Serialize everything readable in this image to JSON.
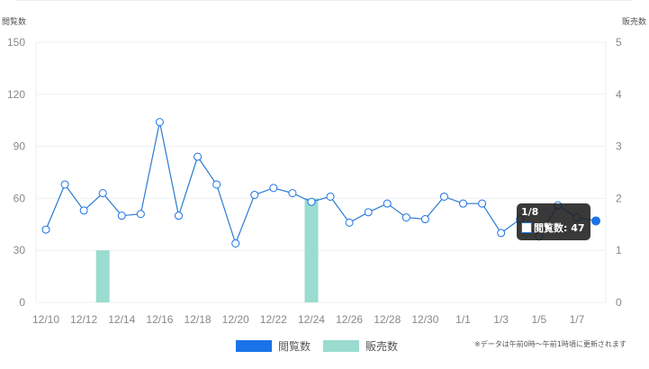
{
  "chart_data": {
    "type": "bar+line",
    "categories": [
      "12/10",
      "12/11",
      "12/12",
      "12/13",
      "12/14",
      "12/15",
      "12/16",
      "12/17",
      "12/18",
      "12/19",
      "12/20",
      "12/21",
      "12/22",
      "12/23",
      "12/24",
      "12/25",
      "12/26",
      "12/27",
      "12/28",
      "12/29",
      "12/30",
      "12/31",
      "1/1",
      "1/2",
      "1/3",
      "1/4",
      "1/5",
      "1/6",
      "1/7",
      "1/8"
    ],
    "x_tick_labels": [
      "12/10",
      "12/12",
      "12/14",
      "12/16",
      "12/18",
      "12/20",
      "12/22",
      "12/24",
      "12/26",
      "12/28",
      "12/30",
      "1/1",
      "1/3",
      "1/5",
      "1/7"
    ],
    "series": [
      {
        "name": "閲覧数",
        "type": "line",
        "axis": "left",
        "color": "#1a73e8",
        "values": [
          42,
          68,
          53,
          63,
          50,
          51,
          104,
          50,
          84,
          68,
          34,
          62,
          66,
          63,
          58,
          61,
          46,
          52,
          57,
          49,
          48,
          61,
          57,
          57,
          40,
          48,
          38,
          56,
          49,
          47
        ]
      },
      {
        "name": "販売数",
        "type": "bar",
        "axis": "right",
        "color": "#9adccf",
        "values": [
          0,
          0,
          0,
          1,
          0,
          0,
          0,
          0,
          0,
          0,
          0,
          0,
          0,
          0,
          2,
          0,
          0,
          0,
          0,
          0,
          0,
          0,
          0,
          0,
          0,
          0,
          0,
          0,
          0,
          0
        ]
      }
    ],
    "ylabel_left": "閲覧数",
    "ylabel_right": "販売数",
    "ylim_left": [
      0,
      150
    ],
    "yticks_left": [
      "0",
      "30",
      "60",
      "90",
      "120",
      "150"
    ],
    "ylim_right": [
      0,
      5
    ],
    "yticks_right": [
      "0",
      "1",
      "2",
      "3",
      "4",
      "5"
    ],
    "grid": true,
    "legend": "bottom",
    "tooltip": {
      "title": "1/8",
      "label": "閲覧数: 47"
    }
  },
  "note": "※データは午前0時～午前1時頃に更新されます"
}
